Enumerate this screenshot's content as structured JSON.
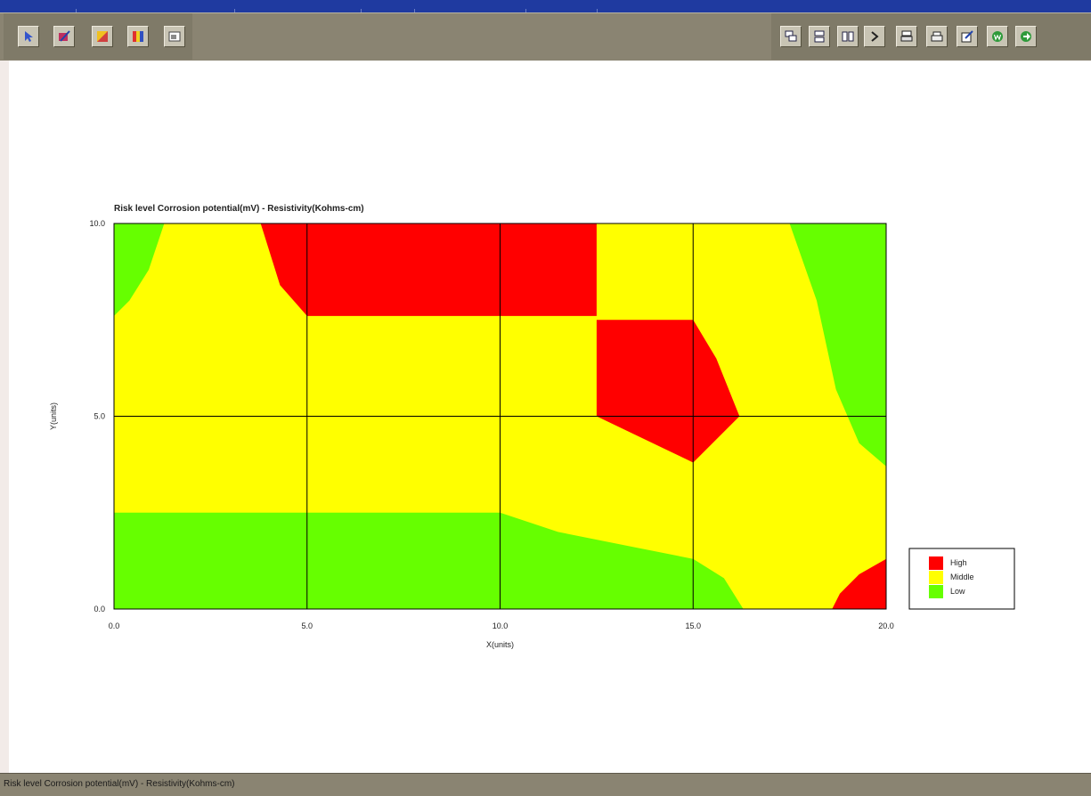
{
  "toolbar": {
    "left_icons": [
      "pointer-icon",
      "edit-chart-icon",
      "palette-icon",
      "color-bars-icon",
      "window-icon"
    ],
    "right_icons": [
      "cascade-icon",
      "tile-icon",
      "column-icon",
      "next-icon",
      "print-preview-icon",
      "print-icon",
      "export-icon",
      "word-icon",
      "exit-icon"
    ]
  },
  "status": {
    "text": "Risk level Corrosion potential(mV) - Resistivity(Kohms-cm)"
  },
  "colors": {
    "high": "#ff0000",
    "middle": "#ffff00",
    "low": "#66ff00"
  },
  "chart_data": {
    "type": "heatmap",
    "title": "Risk level Corrosion potential(mV)  - Resistivity(Kohms-cm)",
    "xlabel": "X(units)",
    "ylabel": "Y(units)",
    "xlim": [
      0,
      20
    ],
    "ylim": [
      0,
      10
    ],
    "xticks": [
      "0.0",
      "5.0",
      "10.0",
      "15.0",
      "20.0"
    ],
    "yticks": [
      "0.0",
      "5.0",
      "10.0"
    ],
    "grid": true,
    "legend_position": "bottom-right",
    "legend": [
      {
        "label": "High",
        "level": "high"
      },
      {
        "label": "Middle",
        "level": "middle"
      },
      {
        "label": "Low",
        "level": "low"
      }
    ],
    "regions": [
      {
        "level": "low",
        "points": [
          [
            0,
            2.5
          ],
          [
            10,
            2.5
          ],
          [
            11.5,
            2.0
          ],
          [
            13.5,
            1.6
          ],
          [
            15,
            1.3
          ],
          [
            15.8,
            0.8
          ],
          [
            16.3,
            0
          ],
          [
            0,
            0
          ]
        ]
      },
      {
        "level": "low",
        "points": [
          [
            0,
            10
          ],
          [
            1.3,
            10
          ],
          [
            0.9,
            8.8
          ],
          [
            0.4,
            8.0
          ],
          [
            0,
            7.6
          ]
        ]
      },
      {
        "level": "low",
        "points": [
          [
            17.5,
            10
          ],
          [
            20,
            10
          ],
          [
            20,
            3.7
          ],
          [
            19.3,
            4.3
          ],
          [
            18.7,
            5.7
          ],
          [
            18.2,
            8.0
          ]
        ]
      },
      {
        "level": "high",
        "points": [
          [
            3.8,
            10
          ],
          [
            12.5,
            10
          ],
          [
            12.5,
            7.6
          ],
          [
            5,
            7.6
          ],
          [
            4.3,
            8.4
          ]
        ]
      },
      {
        "level": "high",
        "points": [
          [
            12.5,
            7.5
          ],
          [
            15,
            7.5
          ],
          [
            15.6,
            6.5
          ],
          [
            16.2,
            5.0
          ],
          [
            15,
            3.8
          ],
          [
            12.5,
            5.0
          ]
        ]
      },
      {
        "level": "high",
        "points": [
          [
            20,
            1.3
          ],
          [
            19.3,
            0.9
          ],
          [
            18.8,
            0.4
          ],
          [
            18.6,
            0
          ],
          [
            20,
            0
          ]
        ]
      }
    ]
  }
}
